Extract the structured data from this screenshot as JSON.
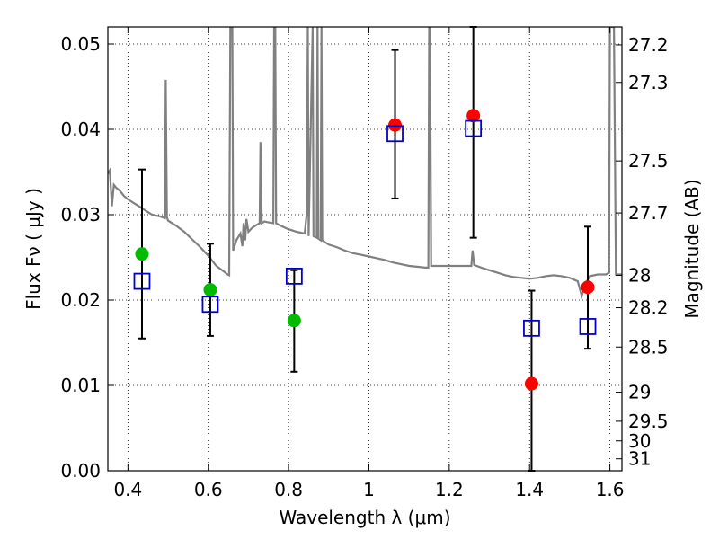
{
  "chart_data": {
    "type": "scatter",
    "xlabel": "Wavelength  λ (μm)",
    "ylabel": "Flux  Fν  ( μJy )",
    "right_ylabel": "Magnitude (AB)",
    "xlim": [
      0.35,
      1.63
    ],
    "ylim": [
      0.0,
      0.052
    ],
    "grid": true,
    "x_ticks": [
      0.4,
      0.6,
      0.8,
      1.0,
      1.2,
      1.4,
      1.6
    ],
    "x_tick_labels": [
      "0.4",
      "0.6",
      "0.8",
      "1",
      "1.2",
      "1.4",
      "1.6"
    ],
    "y_ticks": [
      0.0,
      0.01,
      0.02,
      0.03,
      0.04,
      0.05
    ],
    "y_tick_labels": [
      "0.00",
      "0.01",
      "0.02",
      "0.03",
      "0.04",
      "0.05"
    ],
    "mag_ticks": [
      {
        "label": "27.2",
        "flux": 0.0499
      },
      {
        "label": "27.3",
        "flux": 0.0455
      },
      {
        "label": "27.5",
        "flux": 0.0363
      },
      {
        "label": "27.7",
        "flux": 0.0302
      },
      {
        "label": "28",
        "flux": 0.0229
      },
      {
        "label": "28.2",
        "flux": 0.0191
      },
      {
        "label": "28.5",
        "flux": 0.0145
      },
      {
        "label": "29",
        "flux": 0.0092
      },
      {
        "label": "29.5",
        "flux": 0.0058
      },
      {
        "label": "30",
        "flux": 0.0035
      },
      {
        "label": "31",
        "flux": 0.0014
      }
    ],
    "series": [
      {
        "marker": "circle",
        "color": "#00bb00",
        "points": [
          {
            "x": 0.435,
            "y": 0.0254
          },
          {
            "x": 0.605,
            "y": 0.0212
          },
          {
            "x": 0.814,
            "y": 0.0176
          }
        ]
      },
      {
        "marker": "circle",
        "color": "#ff0000",
        "points": [
          {
            "x": 1.065,
            "y": 0.0405
          },
          {
            "x": 1.26,
            "y": 0.0416
          },
          {
            "x": 1.405,
            "y": 0.0102
          },
          {
            "x": 1.545,
            "y": 0.0215
          }
        ]
      },
      {
        "marker": "square-open",
        "color": "#0000cc",
        "points": [
          {
            "x": 0.435,
            "y": 0.0222,
            "err_low": 0.0155,
            "err_high": 0.0353
          },
          {
            "x": 0.605,
            "y": 0.0195,
            "err_low": 0.0158,
            "err_high": 0.0266
          },
          {
            "x": 0.814,
            "y": 0.0228,
            "err_low": 0.0116,
            "err_high": 0.0235
          },
          {
            "x": 1.065,
            "y": 0.0395,
            "err_low": 0.0319,
            "err_high": 0.0493
          },
          {
            "x": 1.26,
            "y": 0.0401,
            "err_low": 0.0273,
            "err_high": 0.052
          },
          {
            "x": 1.405,
            "y": 0.0167,
            "err_low": 0.0,
            "err_high": 0.0211
          },
          {
            "x": 1.545,
            "y": 0.0169,
            "err_low": 0.0143,
            "err_high": 0.0286
          }
        ]
      },
      {
        "marker": "line",
        "color": "#808080",
        "points": [
          [
            0.35,
            0.0348
          ],
          [
            0.355,
            0.0352
          ],
          [
            0.36,
            0.031
          ],
          [
            0.365,
            0.0335
          ],
          [
            0.37,
            0.0332
          ],
          [
            0.38,
            0.0328
          ],
          [
            0.39,
            0.0322
          ],
          [
            0.4,
            0.0318
          ],
          [
            0.42,
            0.0312
          ],
          [
            0.44,
            0.0306
          ],
          [
            0.46,
            0.03
          ],
          [
            0.48,
            0.0298
          ],
          [
            0.492,
            0.0296
          ],
          [
            0.494,
            0.0458
          ],
          [
            0.497,
            0.0297
          ],
          [
            0.5,
            0.0293
          ],
          [
            0.52,
            0.0287
          ],
          [
            0.54,
            0.028
          ],
          [
            0.56,
            0.0271
          ],
          [
            0.58,
            0.0262
          ],
          [
            0.6,
            0.0252
          ],
          [
            0.62,
            0.024
          ],
          [
            0.64,
            0.0233
          ],
          [
            0.648,
            0.023
          ],
          [
            0.652,
            0.0229
          ],
          [
            0.655,
            0.052
          ],
          [
            0.66,
            0.052
          ],
          [
            0.662,
            0.0258
          ],
          [
            0.67,
            0.027
          ],
          [
            0.68,
            0.0278
          ],
          [
            0.685,
            0.0263
          ],
          [
            0.688,
            0.029
          ],
          [
            0.692,
            0.027
          ],
          [
            0.695,
            0.0295
          ],
          [
            0.7,
            0.028
          ],
          [
            0.71,
            0.0285
          ],
          [
            0.72,
            0.0288
          ],
          [
            0.728,
            0.029
          ],
          [
            0.73,
            0.0385
          ],
          [
            0.733,
            0.029
          ],
          [
            0.74,
            0.0292
          ],
          [
            0.75,
            0.0291
          ],
          [
            0.762,
            0.029
          ],
          [
            0.764,
            0.052
          ],
          [
            0.767,
            0.052
          ],
          [
            0.769,
            0.029
          ],
          [
            0.78,
            0.0287
          ],
          [
            0.8,
            0.0283
          ],
          [
            0.82,
            0.028
          ],
          [
            0.84,
            0.0278
          ],
          [
            0.845,
            0.03
          ],
          [
            0.848,
            0.052
          ],
          [
            0.85,
            0.0275
          ],
          [
            0.86,
            0.052
          ],
          [
            0.862,
            0.0275
          ],
          [
            0.87,
            0.0273
          ],
          [
            0.872,
            0.052
          ],
          [
            0.874,
            0.0272
          ],
          [
            0.88,
            0.027
          ],
          [
            0.882,
            0.052
          ],
          [
            0.884,
            0.027
          ],
          [
            0.89,
            0.0268
          ],
          [
            0.9,
            0.0265
          ],
          [
            0.92,
            0.0262
          ],
          [
            0.94,
            0.0258
          ],
          [
            0.96,
            0.0255
          ],
          [
            0.98,
            0.0253
          ],
          [
            1.0,
            0.0251
          ],
          [
            1.02,
            0.0249
          ],
          [
            1.04,
            0.0247
          ],
          [
            1.06,
            0.0244
          ],
          [
            1.08,
            0.0242
          ],
          [
            1.1,
            0.024
          ],
          [
            1.12,
            0.0239
          ],
          [
            1.14,
            0.0238
          ],
          [
            1.148,
            0.0238
          ],
          [
            1.15,
            0.052
          ],
          [
            1.152,
            0.052
          ],
          [
            1.155,
            0.024
          ],
          [
            1.18,
            0.024
          ],
          [
            1.2,
            0.024
          ],
          [
            1.22,
            0.024
          ],
          [
            1.24,
            0.024
          ],
          [
            1.255,
            0.024
          ],
          [
            1.258,
            0.0258
          ],
          [
            1.262,
            0.0241
          ],
          [
            1.28,
            0.0238
          ],
          [
            1.3,
            0.0235
          ],
          [
            1.32,
            0.0232
          ],
          [
            1.34,
            0.0229
          ],
          [
            1.36,
            0.0227
          ],
          [
            1.38,
            0.0226
          ],
          [
            1.4,
            0.0225
          ],
          [
            1.42,
            0.0226
          ],
          [
            1.44,
            0.0228
          ],
          [
            1.46,
            0.0229
          ],
          [
            1.48,
            0.0228
          ],
          [
            1.5,
            0.0226
          ],
          [
            1.52,
            0.0222
          ],
          [
            1.53,
            0.0205
          ],
          [
            1.54,
            0.022
          ],
          [
            1.55,
            0.0228
          ],
          [
            1.57,
            0.023
          ],
          [
            1.59,
            0.023
          ],
          [
            1.598,
            0.0232
          ],
          [
            1.6,
            0.052
          ],
          [
            1.61,
            0.052
          ],
          [
            1.615,
            0.023
          ],
          [
            1.63,
            0.023
          ]
        ]
      }
    ]
  }
}
